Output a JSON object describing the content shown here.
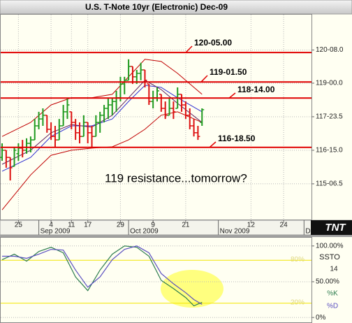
{
  "chart_data": [
    {
      "type": "ohlc",
      "title": "U.S. T-Note 10yr (Electronic) Dec-09",
      "x": [
        "2009-08-19",
        "2009-08-20",
        "2009-08-21",
        "2009-08-24",
        "2009-08-25",
        "2009-08-26",
        "2009-08-27",
        "2009-08-28",
        "2009-08-31",
        "2009-09-01",
        "2009-09-02",
        "2009-09-03",
        "2009-09-04",
        "2009-09-07",
        "2009-09-08",
        "2009-09-09",
        "2009-09-10",
        "2009-09-11",
        "2009-09-14",
        "2009-09-15",
        "2009-09-16",
        "2009-09-17",
        "2009-09-18",
        "2009-09-21",
        "2009-09-22",
        "2009-09-23",
        "2009-09-24",
        "2009-09-25",
        "2009-09-28",
        "2009-09-29",
        "2009-09-30",
        "2009-10-01",
        "2009-10-02",
        "2009-10-05",
        "2009-10-06",
        "2009-10-07",
        "2009-10-08",
        "2009-10-09",
        "2009-10-12",
        "2009-10-13",
        "2009-10-14",
        "2009-10-15",
        "2009-10-16",
        "2009-10-19",
        "2009-10-20",
        "2009-10-21",
        "2009-10-22",
        "2009-10-23",
        "2009-10-26",
        "2009-10-27"
      ],
      "open": [
        116.2,
        116.47,
        116.2,
        115.86,
        116.34,
        116.55,
        116.47,
        116.73,
        116.86,
        117.39,
        117.65,
        117.79,
        117.26,
        116.99,
        116.86,
        117.39,
        117.92,
        117.92,
        117.52,
        117.13,
        116.99,
        117.52,
        117.13,
        116.99,
        117.52,
        117.79,
        118.05,
        118.18,
        118.31,
        118.45,
        118.97,
        119.11,
        119.63,
        119.24,
        119.37,
        119.5,
        118.97,
        118.31,
        118.45,
        118.58,
        118.05,
        117.79,
        118.05,
        118.05,
        118.58,
        118.18,
        117.79,
        117.39,
        117.13,
        117.52
      ],
      "high": [
        116.73,
        116.47,
        116.2,
        116.6,
        116.73,
        116.86,
        116.92,
        116.99,
        117.65,
        117.92,
        118.05,
        117.79,
        117.52,
        117.39,
        117.65,
        118.18,
        118.45,
        117.92,
        117.65,
        117.52,
        117.79,
        117.52,
        117.39,
        117.79,
        117.92,
        118.18,
        118.45,
        118.45,
        118.71,
        119.24,
        119.24,
        119.9,
        119.63,
        119.5,
        119.77,
        119.5,
        118.97,
        118.71,
        118.84,
        118.58,
        118.31,
        118.45,
        118.31,
        118.84,
        118.58,
        118.31,
        118.05,
        117.65,
        117.39,
        118.05
      ],
      "low": [
        116.07,
        115.81,
        115.33,
        115.86,
        116.07,
        116.2,
        116.34,
        116.39,
        116.86,
        117.26,
        117.39,
        117.13,
        116.86,
        116.6,
        116.86,
        117.39,
        117.65,
        117.26,
        116.86,
        116.73,
        116.99,
        116.73,
        116.6,
        116.99,
        117.13,
        117.52,
        117.65,
        117.79,
        117.92,
        118.31,
        118.58,
        119.11,
        118.97,
        118.97,
        119.11,
        118.84,
        118.18,
        118.05,
        118.31,
        117.92,
        117.65,
        117.79,
        117.65,
        118.05,
        117.92,
        117.65,
        117.26,
        116.99,
        116.86,
        117.39
      ],
      "close": [
        116.47,
        116.2,
        115.81,
        116.47,
        116.55,
        116.47,
        116.73,
        116.86,
        117.39,
        117.65,
        117.79,
        117.26,
        116.99,
        116.86,
        117.39,
        117.92,
        118.18,
        117.52,
        117.13,
        116.99,
        117.52,
        117.13,
        116.99,
        117.52,
        117.79,
        118.05,
        118.18,
        118.31,
        118.45,
        118.97,
        119.11,
        119.63,
        119.24,
        119.37,
        119.5,
        119.11,
        118.31,
        118.45,
        118.71,
        118.05,
        117.79,
        118.05,
        117.92,
        118.58,
        118.18,
        117.79,
        117.39,
        117.13,
        116.99,
        118.0
      ],
      "up_color": "#1f9a1f",
      "down_color": "#dd1010",
      "overlays": [
        {
          "color": "#c00000",
          "x": [
            "2009-08-19",
            "2009-08-28",
            "2009-09-04",
            "2009-09-11",
            "2009-09-18",
            "2009-09-25",
            "2009-10-01",
            "2009-10-07",
            "2009-10-13",
            "2009-10-19",
            "2009-10-27"
          ],
          "values": [
            116.99,
            117.52,
            118.18,
            118.45,
            118.45,
            118.58,
            119.24,
            119.9,
            119.82,
            119.37,
            118.58
          ]
        },
        {
          "color": "#c00000",
          "x": [
            "2009-08-19",
            "2009-08-28",
            "2009-09-04",
            "2009-09-11",
            "2009-09-18",
            "2009-09-25",
            "2009-10-01",
            "2009-10-07",
            "2009-10-13",
            "2009-10-19",
            "2009-10-27"
          ],
          "values": [
            114.22,
            115.54,
            116.28,
            116.47,
            116.55,
            116.6,
            116.86,
            117.26,
            117.79,
            117.92,
            117.52
          ]
        },
        {
          "color": "#3030d0",
          "x": [
            "2009-08-19",
            "2009-08-28",
            "2009-09-04",
            "2009-09-11",
            "2009-09-18",
            "2009-09-25",
            "2009-10-01",
            "2009-10-07",
            "2009-10-13",
            "2009-10-19",
            "2009-10-27"
          ],
          "values": [
            115.68,
            116.2,
            116.99,
            117.39,
            117.39,
            117.65,
            118.31,
            118.92,
            118.84,
            118.45,
            117.92
          ]
        },
        {
          "color": "#602060",
          "x": [
            "2009-08-19",
            "2009-08-28",
            "2009-09-04",
            "2009-09-11",
            "2009-09-18",
            "2009-09-25",
            "2009-10-01",
            "2009-10-07",
            "2009-10-13",
            "2009-10-19",
            "2009-10-27"
          ],
          "values": [
            115.94,
            116.47,
            117.13,
            117.44,
            117.34,
            117.79,
            118.45,
            119.11,
            118.76,
            118.24,
            117.52
          ]
        }
      ],
      "levels": [
        {
          "value": 120.15625,
          "label": "120-05.00"
        },
        {
          "value": 119.046875,
          "label": "119-01.50"
        },
        {
          "value": 118.4375,
          "label": "118-14.00"
        },
        {
          "value": 116.578125,
          "label": "116-18.50"
        }
      ],
      "level_color": "#e00000",
      "annotation": "119 resistance...tomorrow?",
      "xlim": [
        "2009-08-19",
        "2009-12-03"
      ],
      "xticks": [
        {
          "value": "2009-08-25",
          "label": "25"
        },
        {
          "value": "2009-09-04",
          "label": "4"
        },
        {
          "value": "2009-09-11",
          "label": "11"
        },
        {
          "value": "2009-09-17",
          "label": "17"
        },
        {
          "value": "2009-09-29",
          "label": "29"
        },
        {
          "value": "2009-10-09",
          "label": "9"
        },
        {
          "value": "2009-10-21",
          "label": "21"
        },
        {
          "value": "2009-11-12",
          "label": "12"
        },
        {
          "value": "2009-11-24",
          "label": "24"
        }
      ],
      "month_ticks": [
        {
          "value": "2009-09",
          "label": "Sep 2009"
        },
        {
          "value": "2009-10",
          "label": "Oct 2009"
        },
        {
          "value": "2009-11",
          "label": "Nov 2009"
        },
        {
          "value": "2009-12",
          "label": "D"
        }
      ],
      "ylim": [
        113.83,
        121.61
      ],
      "yticks": [
        {
          "value": 120.25,
          "label": "120-08.0"
        },
        {
          "value": 119,
          "label": "119-00.0"
        },
        {
          "value": 117.734375,
          "label": "117-23.5"
        },
        {
          "value": 116.46875,
          "label": "116-15.0"
        },
        {
          "value": 115.203125,
          "label": "115-06.5"
        }
      ],
      "grid": true,
      "logo": "TNT"
    },
    {
      "type": "line",
      "indicator": "SSTO",
      "period": 14,
      "x": [
        "2009-08-19",
        "2009-08-24",
        "2009-08-27",
        "2009-09-01",
        "2009-09-04",
        "2009-09-09",
        "2009-09-14",
        "2009-09-17",
        "2009-09-22",
        "2009-09-25",
        "2009-09-30",
        "2009-10-05",
        "2009-10-08",
        "2009-10-13",
        "2009-10-16",
        "2009-10-21",
        "2009-10-23",
        "2009-10-27"
      ],
      "series": [
        {
          "name": "%K",
          "color": "#2e7d4f",
          "values": [
            80.8,
            88.5,
            78.8,
            92.3,
            98.1,
            90.4,
            56.7,
            37.5,
            66.3,
            88.5,
            100,
            98.1,
            85.6,
            51.9,
            40.4,
            27.9,
            16.3,
            21.2
          ]
        },
        {
          "name": "%D",
          "color": "#5a4fc0",
          "values": [
            85.6,
            85.6,
            82.7,
            88.5,
            95.2,
            94.2,
            66.3,
            42.3,
            56.7,
            80.8,
            95.2,
            100,
            90.4,
            61.5,
            47.1,
            34.6,
            25,
            18.3
          ]
        }
      ],
      "levels": [
        {
          "value": 80,
          "label": "80%"
        },
        {
          "value": 20,
          "label": "20%"
        }
      ],
      "level_color": "#f2e600",
      "xlim": [
        "2009-08-19",
        "2009-12-03"
      ],
      "ylim": [
        -7.7,
        112.5
      ],
      "yticks": [
        {
          "value": 100,
          "label": "100.00%"
        },
        {
          "value": 50,
          "label": "50.00%"
        },
        {
          "value": 0,
          "label": "0%"
        }
      ],
      "grid": true
    }
  ]
}
